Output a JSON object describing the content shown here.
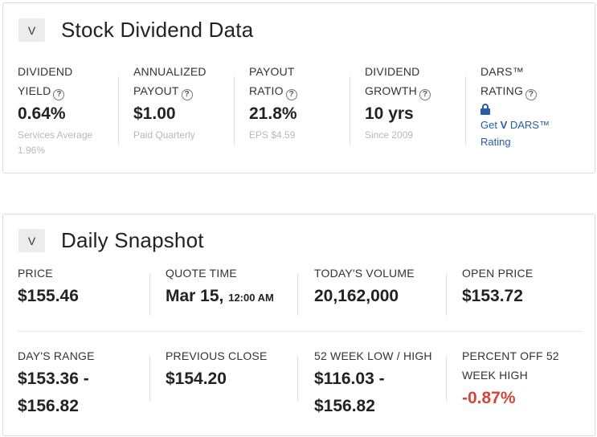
{
  "dividend_card": {
    "ticker": "V",
    "title": "Stock Dividend Data",
    "help_glyph": "?",
    "dividend_yield": {
      "label_line1": "DIVIDEND",
      "label_line2": "YIELD",
      "value": "0.64%",
      "sub_line1": "Services Average",
      "sub_line2": "1.96%"
    },
    "annualized_payout": {
      "label_line1": "ANNUALIZED",
      "label_line2": "PAYOUT",
      "value": "$1.00",
      "sub": "Paid Quarterly"
    },
    "payout_ratio": {
      "label_line1": "PAYOUT",
      "label_line2": "RATIO",
      "value": "21.8%",
      "sub": "EPS $4.59"
    },
    "dividend_growth": {
      "label_line1": "DIVIDEND",
      "label_line2": "GROWTH",
      "value": "10 yrs",
      "sub": "Since 2009"
    },
    "dars_rating": {
      "label_line1": "DARS™",
      "label_line2": "RATING",
      "icon": "lock-icon",
      "link_prefix": "Get ",
      "link_ticker": "V",
      "link_suffix": " DARS™",
      "link_line2": "Rating"
    }
  },
  "snapshot_card": {
    "ticker": "V",
    "title": "Daily Snapshot",
    "price": {
      "label": "PRICE",
      "value": "$155.46"
    },
    "quote_time": {
      "label": "QUOTE TIME",
      "date": "Mar 15,",
      "time": "12:00 AM"
    },
    "todays_volume": {
      "label": "TODAY'S VOLUME",
      "value": "20,162,000"
    },
    "open_price": {
      "label": "OPEN PRICE",
      "value": "$153.72"
    },
    "days_range": {
      "label": "DAY'S RANGE",
      "value_line1": "$153.36 -",
      "value_line2": "$156.82"
    },
    "previous_close": {
      "label": "PREVIOUS CLOSE",
      "value": "$154.20"
    },
    "week52_low_high": {
      "label": "52 WEEK LOW / HIGH",
      "value_line1": "$116.03 -",
      "value_line2": "$156.82"
    },
    "percent_off_high": {
      "label_line1": "PERCENT OFF 52",
      "label_line2": "WEEK HIGH",
      "value": "-0.87%"
    }
  },
  "colors": {
    "link": "#2a5ba8",
    "negative": "#d0463c",
    "muted": "#b8b8b8"
  }
}
